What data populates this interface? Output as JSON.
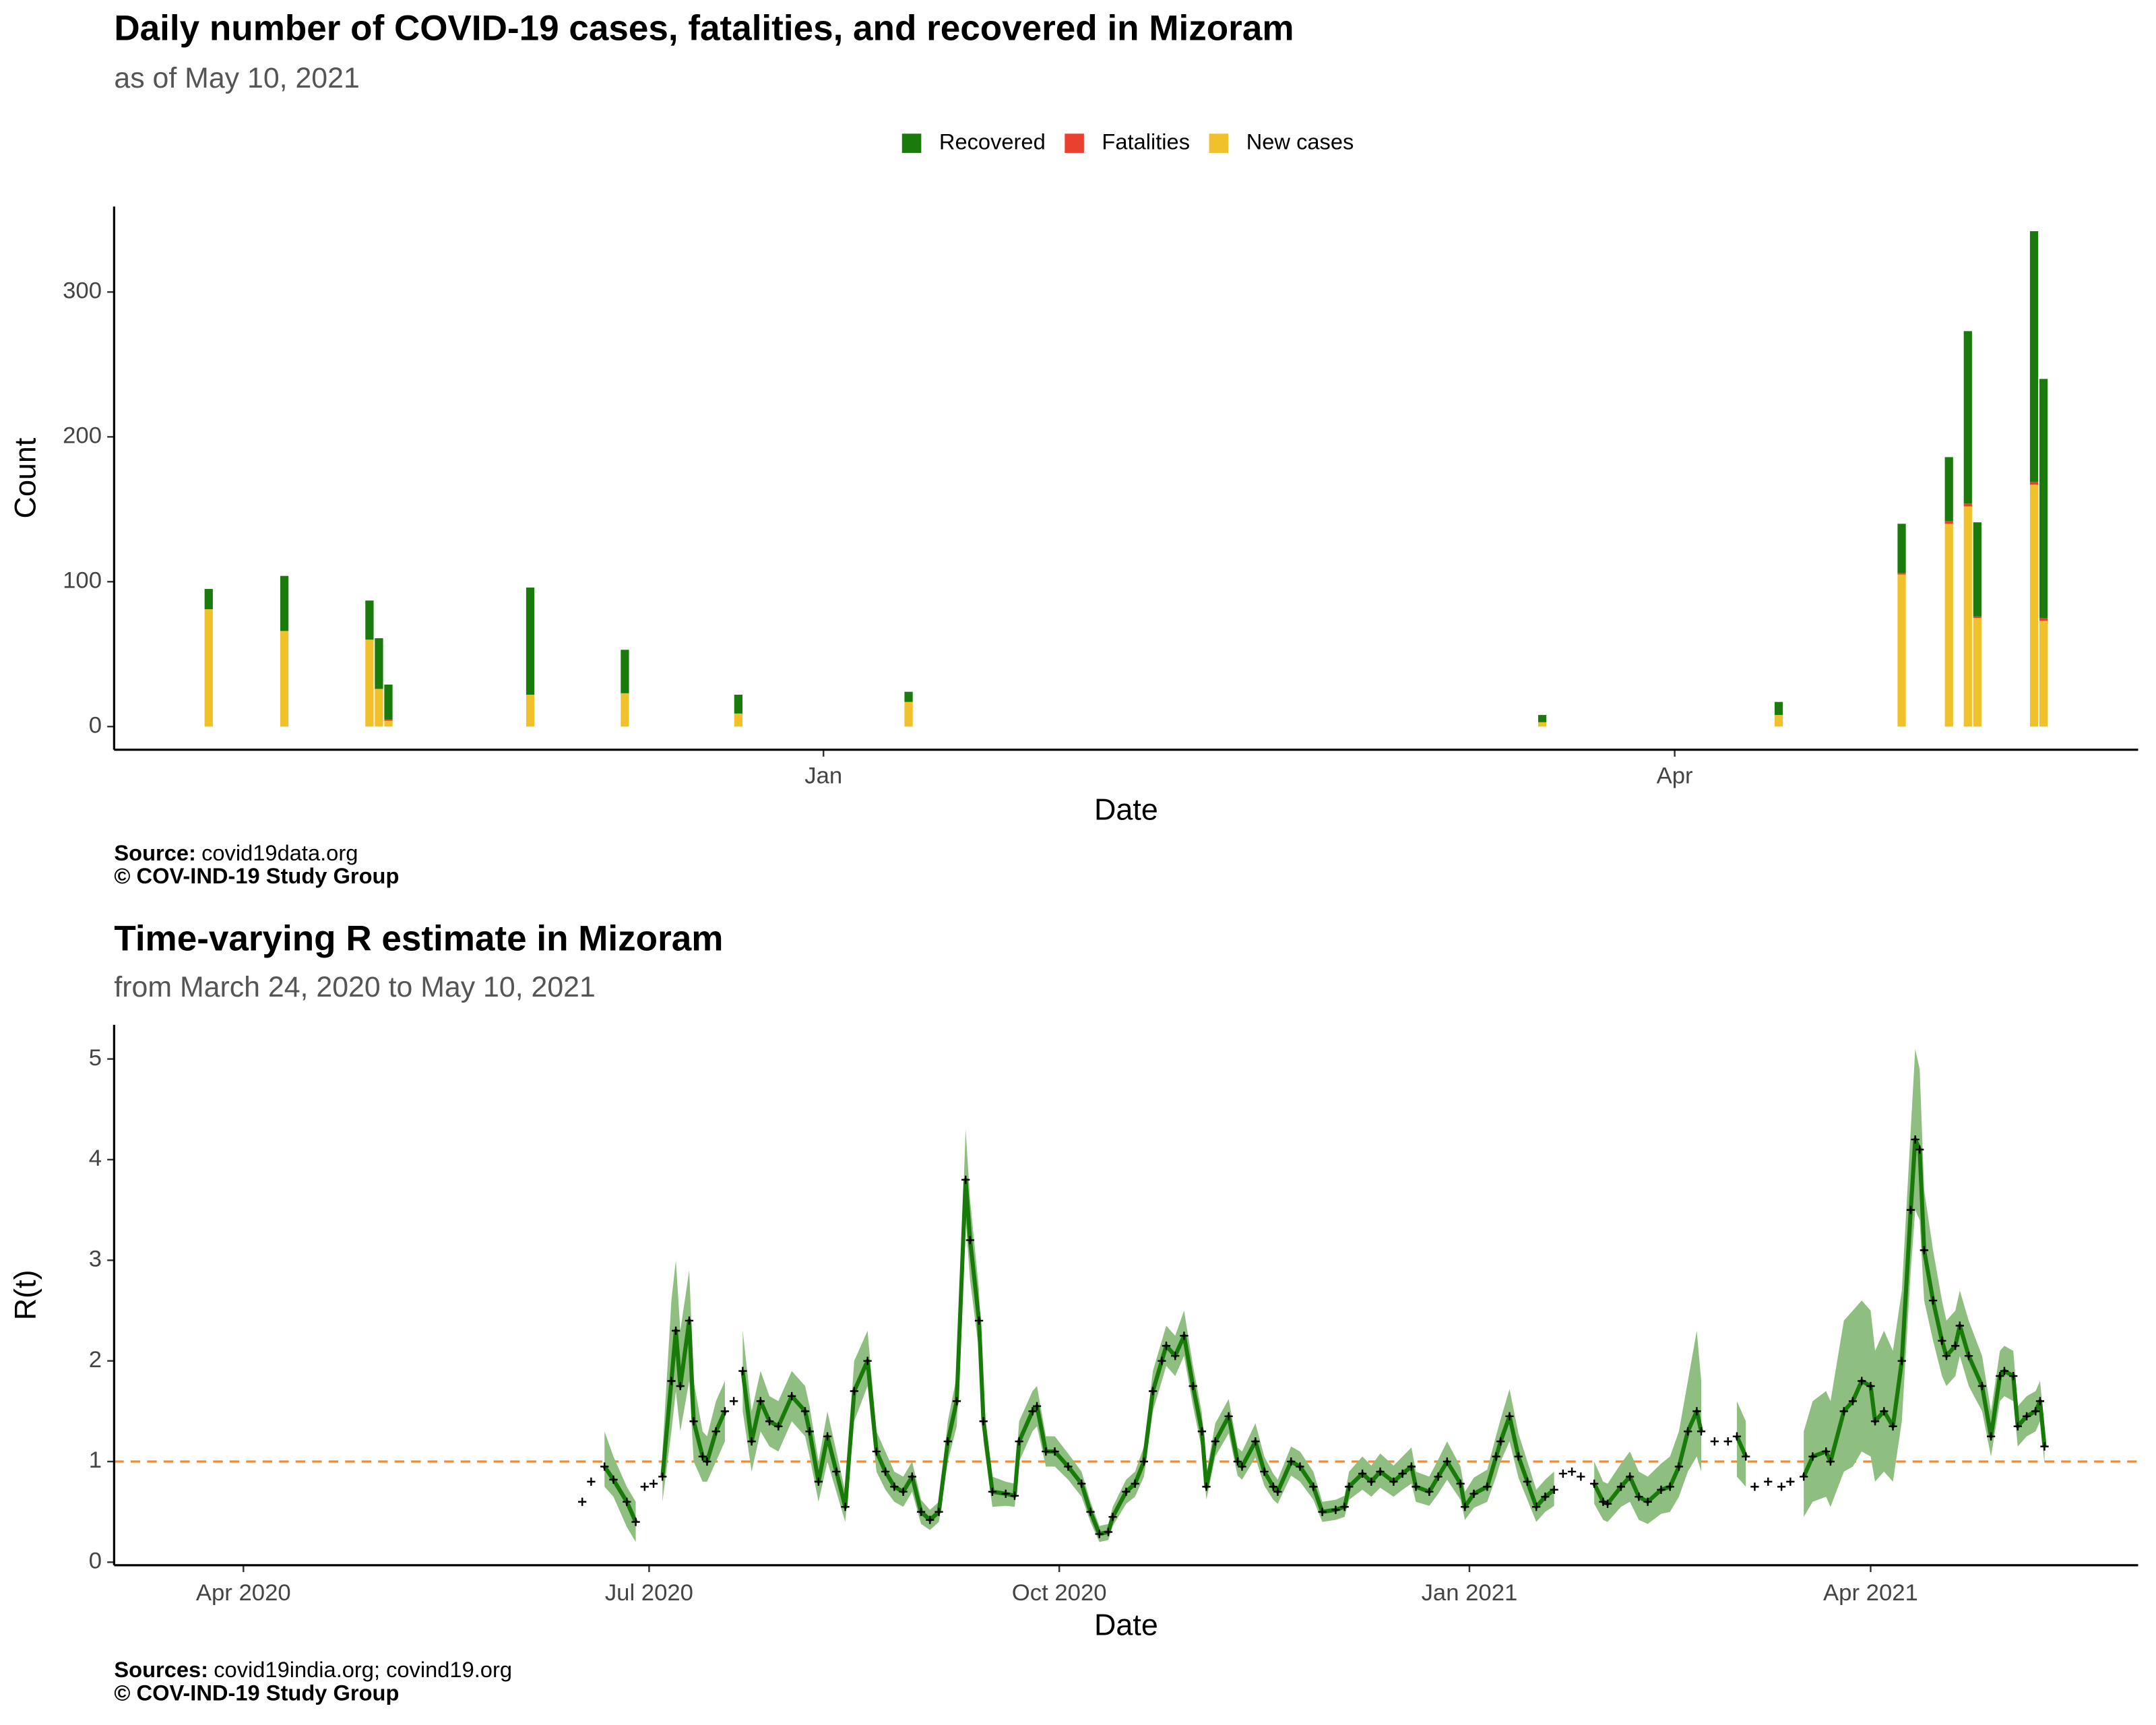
{
  "chart_data": [
    {
      "type": "bar",
      "stacked": true,
      "title": "Daily number of COVID-19 cases, fatalities, and recovered in Mizoram",
      "subtitle": "as of May 10, 2021",
      "legend": "top",
      "x": [
        -65,
        -57,
        -48,
        -47,
        -46,
        -31,
        -21,
        -9,
        9,
        76,
        101,
        114,
        119,
        121,
        122,
        128,
        129
      ],
      "series": [
        {
          "name": "Recovered",
          "color": "#1a7a0c",
          "values": [
            14,
            38,
            27,
            35,
            24,
            74,
            30,
            13,
            7,
            5,
            9,
            34,
            44,
            119,
            65,
            173,
            165
          ]
        },
        {
          "name": "Fatalities",
          "color": "#e8412f",
          "values": [
            0,
            0,
            0,
            0,
            1,
            0,
            0,
            0,
            0,
            0,
            0,
            1,
            2,
            2,
            1,
            2,
            2
          ]
        },
        {
          "name": "New cases",
          "color": "#f0c12b",
          "values": [
            81,
            66,
            60,
            26,
            4,
            22,
            23,
            9,
            17,
            3,
            8,
            105,
            140,
            152,
            75,
            167,
            73
          ]
        }
      ],
      "xlim": [
        -75,
        139
      ],
      "xticks": [
        {
          "value": 0,
          "label": "Jan"
        },
        {
          "value": 90,
          "label": "Apr"
        }
      ],
      "ylim": [
        -16,
        359
      ],
      "yticks": [
        0,
        100,
        200,
        300
      ],
      "xlabel": "Date",
      "ylabel": "Count",
      "source_label": "Source:",
      "source": "covid19data.org",
      "copyright": "© COV-IND-19 Study Group"
    },
    {
      "type": "line",
      "title": "Time-varying R estimate in Mizoram",
      "subtitle": "from March 24, 2020 to May 10, 2021",
      "color": "#187a08",
      "band_color": "#8fbf80",
      "point_color": "#000000",
      "reference_line": {
        "value": 1,
        "color": "#f28a30"
      },
      "x": [
        76,
        78,
        81,
        83,
        86,
        88,
        90,
        92,
        94,
        96,
        97,
        98,
        100,
        101,
        103,
        104,
        106,
        108,
        110,
        112,
        114,
        116,
        118,
        120,
        123,
        126,
        127,
        129,
        131,
        133,
        135,
        137,
        140,
        142,
        144,
        146,
        148,
        150,
        152,
        154,
        156,
        158,
        160,
        162,
        163,
        165,
        166,
        168,
        171,
        173,
        174,
        177,
        178,
        180,
        182,
        185,
        188,
        190,
        192,
        194,
        195,
        198,
        200,
        202,
        204,
        206,
        207,
        209,
        211,
        213,
        215,
        216,
        218,
        221,
        223,
        224,
        227,
        229,
        231,
        232,
        235,
        237,
        240,
        242,
        245,
        247,
        248,
        251,
        253,
        255,
        258,
        260,
        262,
        263,
        266,
        268,
        270,
        273,
        274,
        276,
        279,
        281,
        282,
        284,
        286,
        288,
        290,
        292,
        294,
        296,
        298,
        300,
        303,
        305,
        306,
        309,
        311,
        313,
        315,
        318,
        320,
        322,
        324,
        326,
        327,
        330,
        333,
        335,
        337,
        339,
        342,
        345,
        347,
        350,
        352,
        355,
        356,
        359,
        361,
        363,
        365,
        366,
        368,
        370,
        372,
        374,
        375,
        376,
        377,
        379,
        381,
        382,
        384,
        385,
        387,
        390,
        392,
        394,
        395,
        397,
        398,
        400,
        402,
        403,
        404
      ],
      "values": [
        0.6,
        0.8,
        0.95,
        0.82,
        0.6,
        0.4,
        0.75,
        0.78,
        0.85,
        1.8,
        2.3,
        1.75,
        2.4,
        1.4,
        1.05,
        1.0,
        1.3,
        1.5,
        1.6,
        1.9,
        1.2,
        1.6,
        1.4,
        1.35,
        1.65,
        1.5,
        1.3,
        0.8,
        1.25,
        0.9,
        0.55,
        1.7,
        2.0,
        1.1,
        0.9,
        0.75,
        0.7,
        0.85,
        0.5,
        0.42,
        0.5,
        1.2,
        1.6,
        3.8,
        3.2,
        2.4,
        1.4,
        0.7,
        0.68,
        0.66,
        1.2,
        1.5,
        1.55,
        1.1,
        1.1,
        0.95,
        0.78,
        0.5,
        0.28,
        0.3,
        0.45,
        0.7,
        0.78,
        1.0,
        1.7,
        2.0,
        2.15,
        2.05,
        2.25,
        1.75,
        1.3,
        0.75,
        1.2,
        1.45,
        1.0,
        0.95,
        1.2,
        0.9,
        0.75,
        0.7,
        1.0,
        0.95,
        0.75,
        0.5,
        0.52,
        0.55,
        0.75,
        0.88,
        0.8,
        0.9,
        0.8,
        0.88,
        0.95,
        0.75,
        0.7,
        0.85,
        1.0,
        0.78,
        0.55,
        0.68,
        0.75,
        1.05,
        1.2,
        1.45,
        1.05,
        0.8,
        0.55,
        0.65,
        0.72,
        0.88,
        0.9,
        0.85,
        0.78,
        0.6,
        0.58,
        0.75,
        0.85,
        0.65,
        0.6,
        0.72,
        0.75,
        0.95,
        1.3,
        1.5,
        1.3,
        1.2,
        1.2,
        1.25,
        1.05,
        0.75,
        0.8,
        0.75,
        0.8,
        0.85,
        1.05,
        1.1,
        1.0,
        1.5,
        1.6,
        1.8,
        1.75,
        1.4,
        1.5,
        1.35,
        2.0,
        3.5,
        4.2,
        4.1,
        3.1,
        2.6,
        2.2,
        2.05,
        2.15,
        2.35,
        2.05,
        1.75,
        1.25,
        1.85,
        1.9,
        1.85,
        1.35,
        1.45,
        1.5,
        1.6,
        1.15
      ],
      "lower": [
        null,
        null,
        0.75,
        0.65,
        0.35,
        0.2,
        null,
        null,
        0.6,
        1.3,
        1.7,
        1.3,
        1.8,
        1.0,
        0.8,
        0.8,
        1.0,
        1.2,
        null,
        1.5,
        0.9,
        1.3,
        1.15,
        1.1,
        1.4,
        1.25,
        1.05,
        0.6,
        1.0,
        0.7,
        0.4,
        1.4,
        1.75,
        0.9,
        0.72,
        0.6,
        0.55,
        0.7,
        0.38,
        0.32,
        0.4,
        1.0,
        1.35,
        3.4,
        2.8,
        2.1,
        1.2,
        0.55,
        0.56,
        0.55,
        1.0,
        1.3,
        1.35,
        0.95,
        0.95,
        0.82,
        0.65,
        0.4,
        0.2,
        0.22,
        0.36,
        0.58,
        0.65,
        0.85,
        1.5,
        1.8,
        1.95,
        1.85,
        2.05,
        1.55,
        1.12,
        0.62,
        1.05,
        1.28,
        0.86,
        0.82,
        1.04,
        0.76,
        0.62,
        0.58,
        0.86,
        0.8,
        0.62,
        0.4,
        0.42,
        0.45,
        0.62,
        0.72,
        0.65,
        0.74,
        0.65,
        0.72,
        0.78,
        0.6,
        0.56,
        0.68,
        0.82,
        0.62,
        0.42,
        0.54,
        0.6,
        0.85,
        1.0,
        1.2,
        0.84,
        0.62,
        0.4,
        0.5,
        0.56,
        null,
        null,
        null,
        0.58,
        0.42,
        0.4,
        0.55,
        0.6,
        0.42,
        0.38,
        0.48,
        0.5,
        0.65,
        0.9,
        1.05,
        0.9,
        null,
        null,
        0.85,
        0.75,
        null,
        null,
        null,
        null,
        0.45,
        0.6,
        0.65,
        0.55,
        0.9,
        0.95,
        1.1,
        1.05,
        0.8,
        0.9,
        0.8,
        1.4,
        2.9,
        3.5,
        3.4,
        2.6,
        2.2,
        1.85,
        1.75,
        1.85,
        2.05,
        1.75,
        1.5,
        1.05,
        1.6,
        1.65,
        1.6,
        1.15,
        1.25,
        1.3,
        1.4,
        0.98
      ],
      "upper": [
        null,
        null,
        1.3,
        1.05,
        0.75,
        0.6,
        null,
        null,
        1.1,
        2.6,
        3.0,
        2.3,
        2.9,
        1.8,
        1.3,
        1.25,
        1.6,
        1.8,
        null,
        2.3,
        1.5,
        1.9,
        1.65,
        1.6,
        1.9,
        1.75,
        1.55,
        1.0,
        1.5,
        1.1,
        0.7,
        2.0,
        2.3,
        1.3,
        1.1,
        0.9,
        0.85,
        1.0,
        0.62,
        0.52,
        0.6,
        1.4,
        1.85,
        4.3,
        3.6,
        2.7,
        1.6,
        0.85,
        0.8,
        0.78,
        1.4,
        1.7,
        1.75,
        1.25,
        1.25,
        1.08,
        0.9,
        0.6,
        0.36,
        0.38,
        0.55,
        0.82,
        0.9,
        1.15,
        1.9,
        2.2,
        2.35,
        2.25,
        2.5,
        1.95,
        1.48,
        0.88,
        1.38,
        1.62,
        1.14,
        1.1,
        1.38,
        1.05,
        0.88,
        0.82,
        1.15,
        1.1,
        0.9,
        0.6,
        0.62,
        0.66,
        0.9,
        1.05,
        0.96,
        1.08,
        0.96,
        1.05,
        1.14,
        0.9,
        0.85,
        1.02,
        1.2,
        0.95,
        0.7,
        0.84,
        0.92,
        1.26,
        1.42,
        1.72,
        1.28,
        1.0,
        0.72,
        0.82,
        0.9,
        null,
        null,
        null,
        1.0,
        0.8,
        0.78,
        0.98,
        1.1,
        0.9,
        0.85,
        0.98,
        1.05,
        1.3,
        1.8,
        2.3,
        1.8,
        null,
        null,
        1.6,
        1.4,
        null,
        null,
        null,
        null,
        1.3,
        1.6,
        1.7,
        1.6,
        2.4,
        2.5,
        2.6,
        2.5,
        2.1,
        2.3,
        2.1,
        2.7,
        4.3,
        5.1,
        4.9,
        3.7,
        3.1,
        2.6,
        2.4,
        2.5,
        2.7,
        2.4,
        2.05,
        1.5,
        2.1,
        2.15,
        2.1,
        1.55,
        1.65,
        1.7,
        1.8,
        1.35
      ],
      "xlim": [
        -29,
        425
      ],
      "xticks": [
        {
          "value": 0,
          "label": "Apr 2020"
        },
        {
          "value": 91,
          "label": "Jul 2020"
        },
        {
          "value": 183,
          "label": "Oct 2020"
        },
        {
          "value": 275,
          "label": "Jan 2021"
        },
        {
          "value": 365,
          "label": "Apr 2021"
        }
      ],
      "ylim": [
        -0.03,
        5.34
      ],
      "yticks": [
        0,
        1,
        2,
        3,
        4,
        5
      ],
      "xlabel": "Date",
      "ylabel": "R(t)",
      "source_label": "Sources:",
      "source": "covid19india.org; covind19.org",
      "copyright": "© COV-IND-19 Study Group"
    }
  ]
}
